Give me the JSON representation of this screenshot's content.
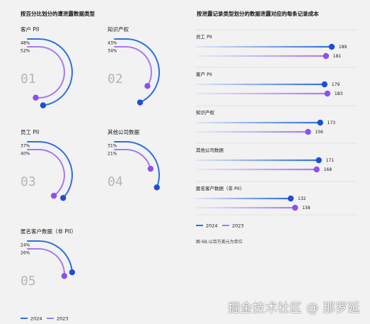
{
  "left": {
    "title": "按百分比划分的遭泄露数据类型",
    "panels": [
      {
        "name": "客户 PII",
        "number": "01",
        "v2024": "48%",
        "v2023": "52%"
      },
      {
        "name": "知识产权",
        "number": "02",
        "v2024": "43%",
        "v2023": "34%"
      },
      {
        "name": "员工 PII",
        "number": "03",
        "v2024": "37%",
        "v2023": "40%"
      },
      {
        "name": "其他公司数据",
        "number": "04",
        "v2024": "31%",
        "v2023": "21%"
      },
      {
        "name": "匿名客户数据（非 PII）",
        "number": "05",
        "v2024": "24%",
        "v2023": "26%"
      }
    ]
  },
  "right": {
    "title": "按泄露记录类型划分的数据泄露对应的每条记录成本",
    "note": "图 6B.以百万美元为单位"
  },
  "legend": {
    "y2024": "2024",
    "y2023": "2023"
  },
  "colors": {
    "c2024": "#2f6fde",
    "c2023": "#a57bf0",
    "dot2024": "#1c4fd6",
    "dot2023": "#8d4ff0"
  },
  "chart_data": [
    {
      "type": "arc-gauge",
      "title": "按百分比划分的遭泄露数据类型",
      "categories": [
        "客户 PII",
        "知识产权",
        "员工 PII",
        "其他公司数据",
        "匿名客户数据（非 PII）"
      ],
      "series": [
        {
          "name": "2024",
          "values": [
            48,
            43,
            37,
            31,
            24
          ]
        },
        {
          "name": "2023",
          "values": [
            52,
            34,
            40,
            21,
            26
          ]
        }
      ],
      "unit": "%"
    },
    {
      "type": "bar",
      "orientation": "horizontal",
      "title": "按泄露记录类型划分的数据泄露对应的每条记录成本",
      "categories": [
        "员工 PII",
        "客户 PII",
        "知识产权",
        "其他公司数据",
        "匿名客户数据（非 PII）"
      ],
      "series": [
        {
          "name": "2024",
          "values": [
            189,
            179,
            173,
            171,
            132
          ]
        },
        {
          "name": "2023",
          "values": [
            181,
            183,
            156,
            168,
            138
          ]
        }
      ],
      "xlim": [
        0,
        195
      ],
      "note": "图 6B.以百万美元为单位",
      "legend": "bottom-left"
    }
  ],
  "watermark": "掘金技术社区 @ 那罗延"
}
